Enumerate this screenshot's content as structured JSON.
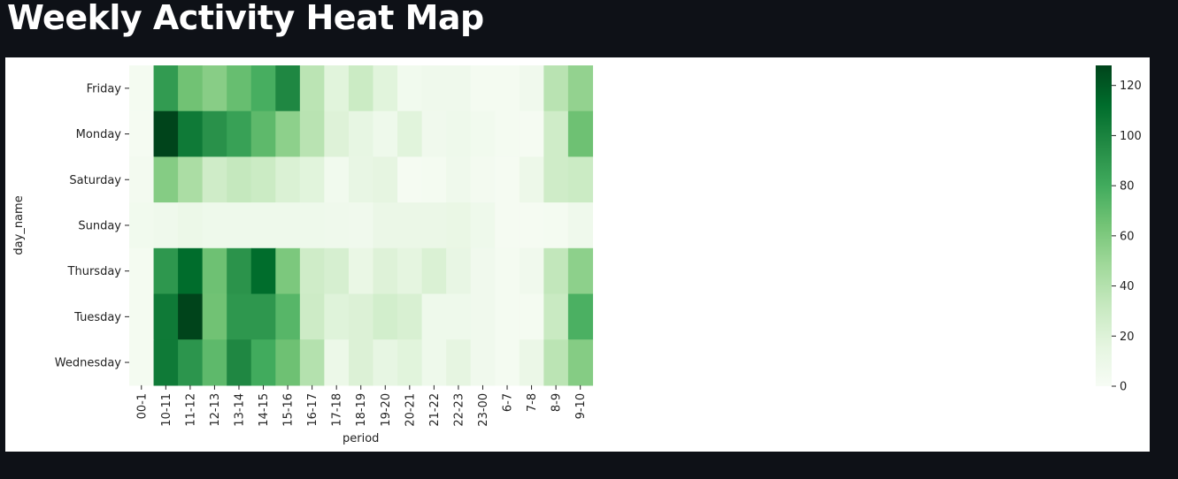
{
  "page": {
    "title": "Weekly Activity Heat Map"
  },
  "chart_data": {
    "type": "heatmap",
    "xlabel": "period",
    "ylabel": "day_name",
    "x_categories": [
      "00-1",
      "10-11",
      "11-12",
      "12-13",
      "13-14",
      "14-15",
      "15-16",
      "16-17",
      "17-18",
      "18-19",
      "19-20",
      "20-21",
      "21-22",
      "22-23",
      "23-00",
      "6-7",
      "7-8",
      "8-9",
      "9-10"
    ],
    "y_categories": [
      "Friday",
      "Monday",
      "Saturday",
      "Sunday",
      "Thursday",
      "Tuesday",
      "Wednesday"
    ],
    "values": [
      [
        3,
        88,
        65,
        57,
        68,
        78,
        98,
        37,
        18,
        30,
        18,
        5,
        7,
        7,
        3,
        3,
        6,
        38,
        53
      ],
      [
        2,
        128,
        105,
        93,
        85,
        71,
        55,
        38,
        20,
        14,
        8,
        18,
        6,
        8,
        5,
        3,
        2,
        28,
        66
      ],
      [
        4,
        58,
        44,
        28,
        33,
        30,
        22,
        18,
        5,
        13,
        15,
        2,
        3,
        7,
        4,
        2,
        9,
        28,
        30
      ],
      [
        5,
        7,
        10,
        8,
        8,
        8,
        8,
        8,
        7,
        6,
        11,
        11,
        11,
        12,
        8,
        2,
        2,
        3,
        7
      ],
      [
        3,
        90,
        112,
        66,
        92,
        112,
        61,
        28,
        24,
        12,
        20,
        16,
        22,
        13,
        6,
        3,
        6,
        34,
        55
      ],
      [
        3,
        105,
        128,
        65,
        90,
        90,
        73,
        29,
        19,
        21,
        26,
        23,
        8,
        8,
        6,
        3,
        3,
        31,
        77
      ],
      [
        3,
        105,
        91,
        71,
        98,
        80,
        66,
        40,
        10,
        21,
        14,
        18,
        8,
        15,
        6,
        3,
        11,
        37,
        58
      ]
    ],
    "colorbar": {
      "vmin": 0,
      "vmax": 128,
      "ticks": [
        "0",
        "20",
        "40",
        "60",
        "80",
        "100",
        "120"
      ]
    },
    "colormap": "Greens",
    "grid": false
  }
}
